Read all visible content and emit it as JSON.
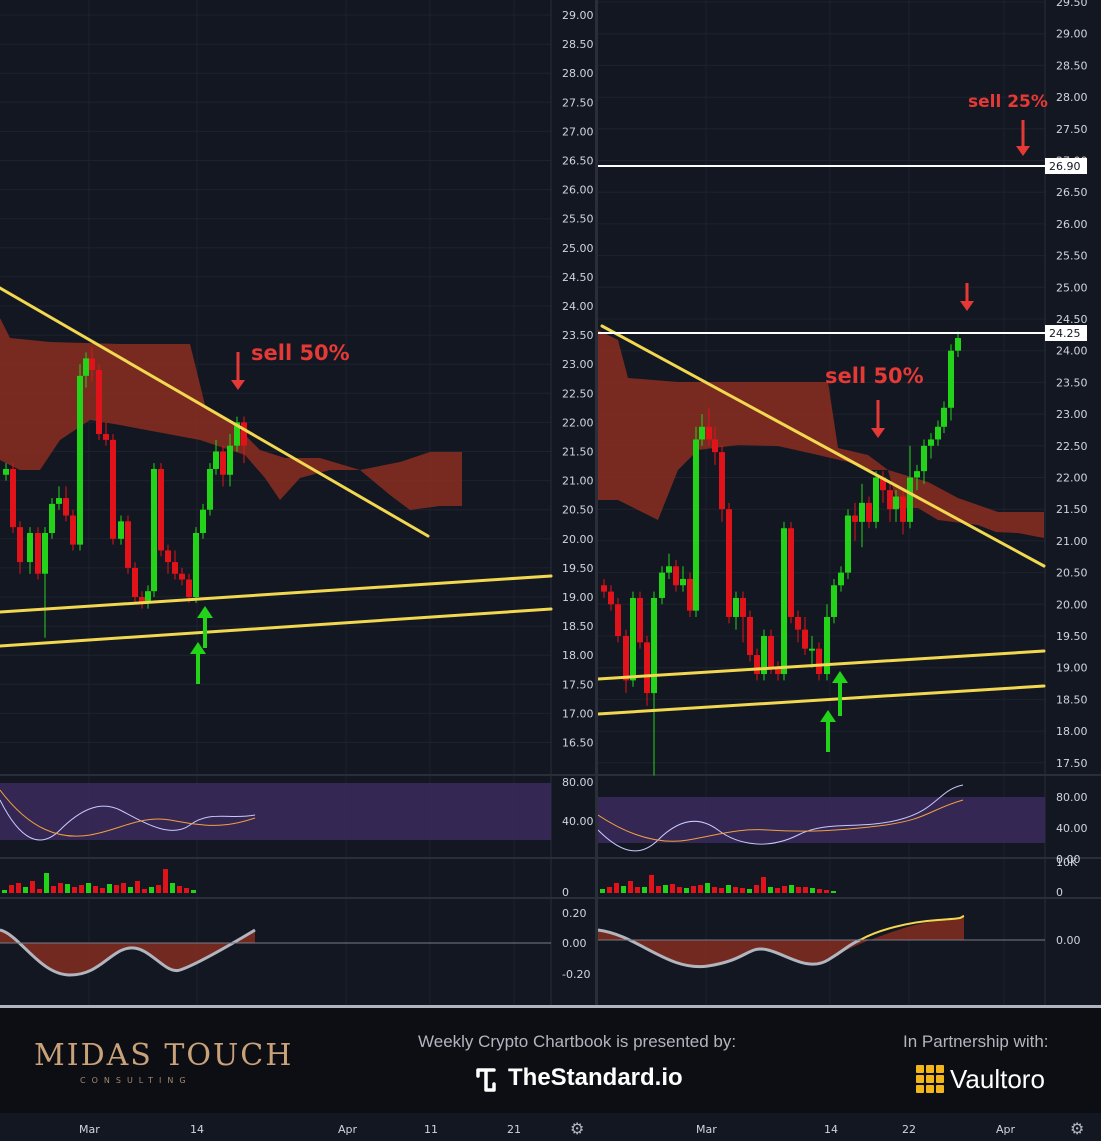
{
  "chart_data": [
    {
      "type": "candlestick",
      "pane": "left",
      "price_ticks": [
        "29.00",
        "28.50",
        "28.00",
        "27.50",
        "27.00",
        "26.50",
        "26.00",
        "25.50",
        "25.00",
        "24.50",
        "24.00",
        "23.50",
        "23.00",
        "22.50",
        "22.00",
        "21.50",
        "21.00",
        "20.50",
        "20.00",
        "19.50",
        "19.00",
        "18.50",
        "18.00",
        "17.50",
        "17.00",
        "16.50"
      ],
      "annotations": [
        {
          "text": "sell 50%"
        }
      ],
      "osc_ticks": [
        "80.00",
        "40.00"
      ],
      "vol_ticks": [
        "0"
      ],
      "macd_ticks": [
        "0.20",
        "0.00",
        "-0.20"
      ],
      "time_labels": [
        "Mar",
        "14",
        "Apr",
        "11",
        "21"
      ],
      "colors": {
        "up": "#22d31a",
        "down": "#e0131a",
        "cloud": "#8b2e21",
        "trend": "#f2d750"
      }
    },
    {
      "type": "candlestick",
      "pane": "right",
      "price_ticks": [
        "29.50",
        "29.00",
        "28.50",
        "28.00",
        "27.50",
        "27.00",
        "26.50",
        "26.00",
        "25.50",
        "25.00",
        "24.50",
        "24.00",
        "23.50",
        "23.00",
        "22.50",
        "22.00",
        "21.50",
        "21.00",
        "20.50",
        "20.00",
        "19.50",
        "19.00",
        "18.50",
        "18.00",
        "17.50"
      ],
      "price_tags": [
        "26.90",
        "24.25"
      ],
      "annotations": [
        {
          "text": "sell 25%"
        },
        {
          "text": "sell 50%"
        }
      ],
      "osc_ticks": [
        "80.00",
        "40.00",
        "0.00"
      ],
      "vol_ticks": [
        "10K",
        "0"
      ],
      "macd_ticks": [
        "0.00"
      ],
      "time_labels": [
        "Mar",
        "14",
        "22",
        "Apr"
      ],
      "colors": {
        "up": "#22d31a",
        "down": "#e0131a",
        "cloud": "#8b2e21",
        "trend": "#f2d750"
      }
    }
  ],
  "banner": {
    "brand": "MIDAS TOUCH",
    "brand_sub": "CONSULTING",
    "presented": "Weekly Crypto Chartbook is presented by:",
    "sponsor": "TheStandard.io",
    "partner_text": "In Partnership with:",
    "partner": "Vaultoro"
  },
  "icons": [
    "gear-icon",
    "standard-logo-icon",
    "vaultoro-logo-icon"
  ]
}
